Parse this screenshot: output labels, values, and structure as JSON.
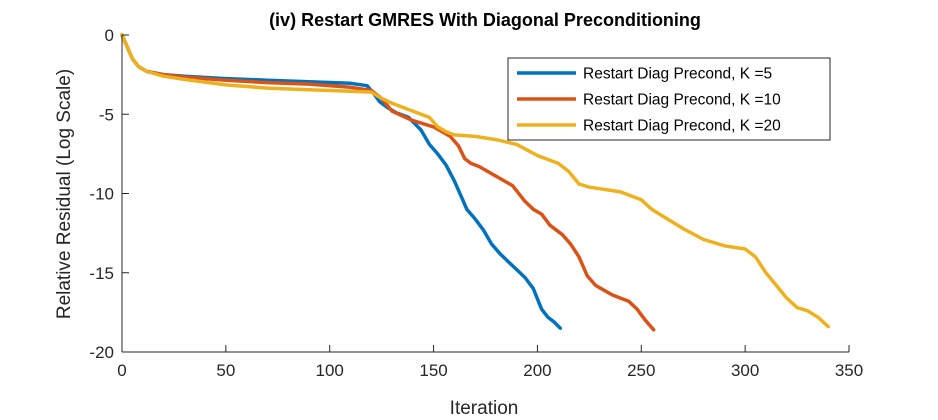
{
  "chart_data": {
    "type": "line",
    "title": "(iv) Restart GMRES With Diagonal Preconditioning",
    "xlabel": "Iteration",
    "ylabel": "Relative Residual (Log Scale)",
    "xlim": [
      0,
      350
    ],
    "ylim": [
      -20,
      0
    ],
    "xticks": [
      0,
      50,
      100,
      150,
      200,
      250,
      300,
      350
    ],
    "yticks": [
      0,
      -5,
      -10,
      -15,
      -20
    ],
    "grid": false,
    "legend_position": "top-right",
    "series": [
      {
        "name": "Restart Diag Precond, K =5",
        "color": "#0072BD",
        "x": [
          0,
          2,
          5,
          8,
          12,
          20,
          30,
          50,
          70,
          90,
          110,
          118,
          120,
          124,
          128,
          132,
          138,
          144,
          148,
          152,
          156,
          160,
          164,
          166,
          170,
          174,
          178,
          182,
          186,
          190,
          194,
          198,
          202,
          205,
          208,
          211
        ],
        "y": [
          0,
          -0.6,
          -1.5,
          -2.0,
          -2.3,
          -2.5,
          -2.6,
          -2.75,
          -2.85,
          -2.95,
          -3.05,
          -3.2,
          -3.5,
          -4.2,
          -4.6,
          -4.9,
          -5.2,
          -6.0,
          -6.9,
          -7.5,
          -8.2,
          -9.2,
          -10.4,
          -11.0,
          -11.6,
          -12.3,
          -13.2,
          -13.8,
          -14.3,
          -14.8,
          -15.3,
          -16.0,
          -17.3,
          -17.8,
          -18.1,
          -18.5
        ]
      },
      {
        "name": "Restart Diag Precond, K =10",
        "color": "#D95319",
        "x": [
          0,
          2,
          5,
          8,
          12,
          20,
          30,
          50,
          70,
          90,
          110,
          120,
          125,
          130,
          140,
          150,
          158,
          162,
          165,
          168,
          172,
          180,
          188,
          194,
          198,
          202,
          206,
          212,
          216,
          220,
          224,
          228,
          232,
          236,
          240,
          244,
          248,
          252,
          256
        ],
        "y": [
          0,
          -0.6,
          -1.5,
          -2.0,
          -2.3,
          -2.5,
          -2.65,
          -2.85,
          -3.0,
          -3.1,
          -3.3,
          -3.5,
          -4.0,
          -4.8,
          -5.4,
          -5.8,
          -6.4,
          -7.0,
          -7.8,
          -8.1,
          -8.3,
          -8.9,
          -9.5,
          -10.5,
          -11.0,
          -11.3,
          -12.0,
          -12.6,
          -13.2,
          -14.0,
          -15.2,
          -15.8,
          -16.1,
          -16.4,
          -16.6,
          -16.8,
          -17.3,
          -18.0,
          -18.6
        ]
      },
      {
        "name": "Restart Diag Precond, K =20",
        "color": "#EDB120",
        "x": [
          0,
          2,
          5,
          8,
          12,
          20,
          30,
          50,
          70,
          90,
          110,
          120,
          125,
          130,
          140,
          148,
          152,
          156,
          160,
          170,
          180,
          190,
          200,
          210,
          215,
          220,
          225,
          230,
          240,
          250,
          255,
          260,
          270,
          280,
          290,
          300,
          305,
          310,
          315,
          320,
          325,
          330,
          335,
          340
        ],
        "y": [
          0,
          -0.6,
          -1.5,
          -2.0,
          -2.3,
          -2.6,
          -2.8,
          -3.15,
          -3.35,
          -3.45,
          -3.55,
          -3.6,
          -4.0,
          -4.3,
          -4.8,
          -5.2,
          -5.8,
          -6.1,
          -6.3,
          -6.4,
          -6.6,
          -6.9,
          -7.6,
          -8.1,
          -8.6,
          -9.4,
          -9.6,
          -9.7,
          -9.9,
          -10.4,
          -11.0,
          -11.4,
          -12.2,
          -12.9,
          -13.3,
          -13.5,
          -14.0,
          -15.0,
          -15.8,
          -16.6,
          -17.2,
          -17.4,
          -17.8,
          -18.4
        ]
      }
    ]
  }
}
